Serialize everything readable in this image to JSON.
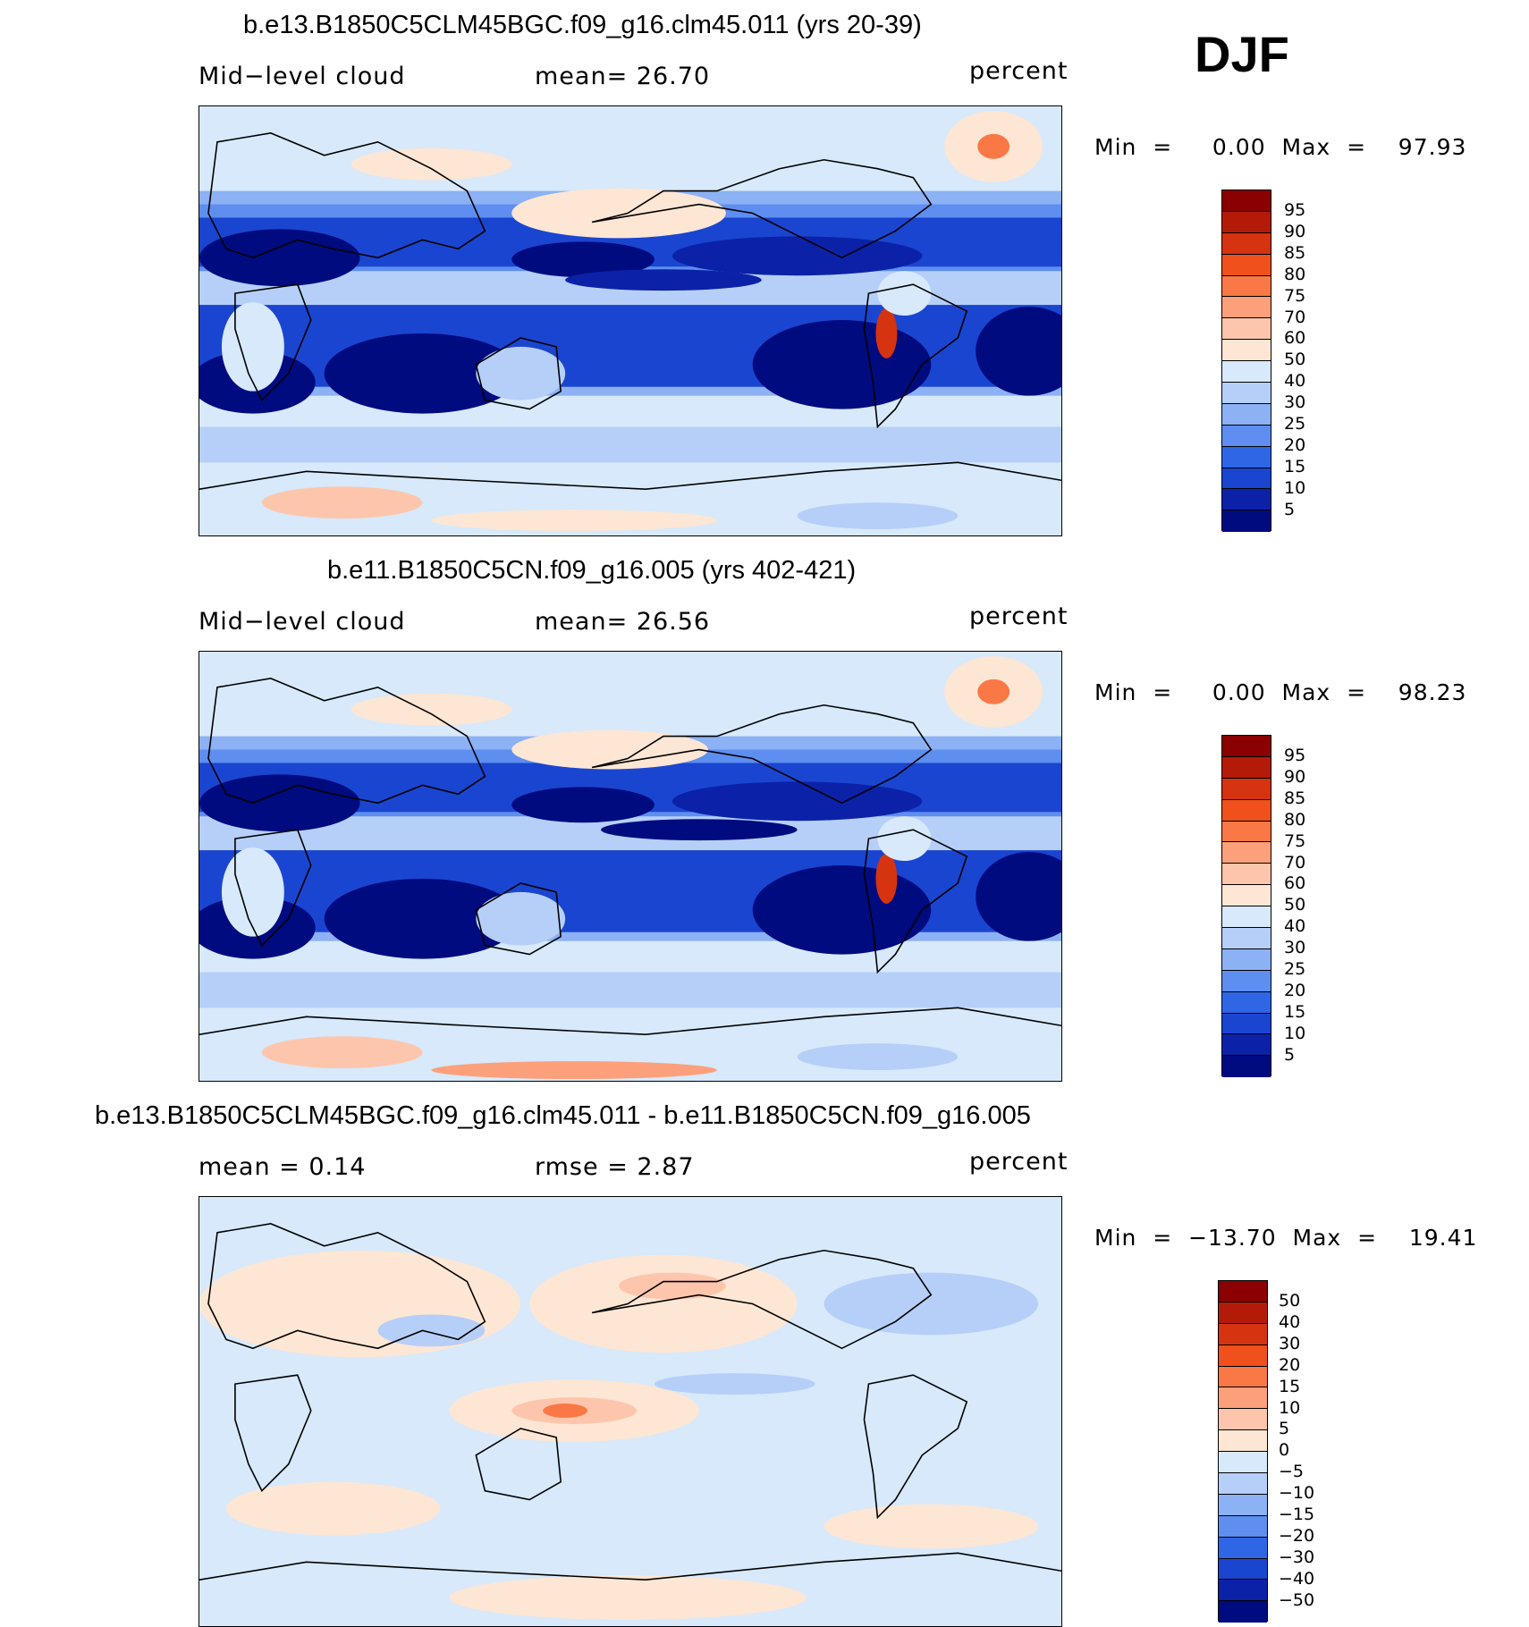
{
  "season": "DJF",
  "panels": [
    {
      "title": "b.e13.B1850C5CLM45BGC.f09_g16.clm45.011 (yrs 20-39)",
      "left_label": "Mid−level  cloud",
      "mid_label": "mean=   26.70",
      "units": "percent",
      "minmax": "Min  =     0.00  Max  =    97.93",
      "colorbar_labels": [
        "95",
        "90",
        "85",
        "80",
        "75",
        "70",
        "60",
        "50",
        "40",
        "30",
        "25",
        "20",
        "15",
        "10",
        "5"
      ]
    },
    {
      "title": "b.e11.B1850C5CN.f09_g16.005 (yrs 402-421)",
      "left_label": "Mid−level  cloud",
      "mid_label": "mean=   26.56",
      "units": "percent",
      "minmax": "Min  =     0.00  Max  =    98.23",
      "colorbar_labels": [
        "95",
        "90",
        "85",
        "80",
        "75",
        "70",
        "60",
        "50",
        "40",
        "30",
        "25",
        "20",
        "15",
        "10",
        "5"
      ]
    },
    {
      "title": "b.e13.B1850C5CLM45BGC.f09_g16.clm45.011 - b.e11.B1850C5CN.f09_g16.005",
      "left_label": "mean  =     0.14",
      "mid_label": "rmse  =     2.87",
      "units": "percent",
      "minmax": "Min  =  −13.70  Max  =    19.41",
      "colorbar_labels": [
        "50",
        "40",
        "30",
        "20",
        "15",
        "10",
        "5",
        "0",
        "−5",
        "−10",
        "−15",
        "−20",
        "−30",
        "−40",
        "−50"
      ]
    }
  ],
  "colors": {
    "abs_scale": [
      "#8b0000",
      "#b31b08",
      "#d63310",
      "#f0501c",
      "#fa7845",
      "#fba07a",
      "#fdc6ac",
      "#fde6d4",
      "#d7e9fb",
      "#b6cff8",
      "#8cb1f4",
      "#5e8ef0",
      "#2f66e6",
      "#1a45d0",
      "#0b22a8",
      "#000b80"
    ],
    "diff_scale": [
      "#8b0000",
      "#b31b08",
      "#d63310",
      "#f0501c",
      "#fa7845",
      "#fba07a",
      "#fdc6ac",
      "#fde6d4",
      "#d7e9fb",
      "#b6cff8",
      "#8cb1f4",
      "#5e8ef0",
      "#2f66e6",
      "#1a45d0",
      "#0b22a8",
      "#000b80"
    ]
  }
}
